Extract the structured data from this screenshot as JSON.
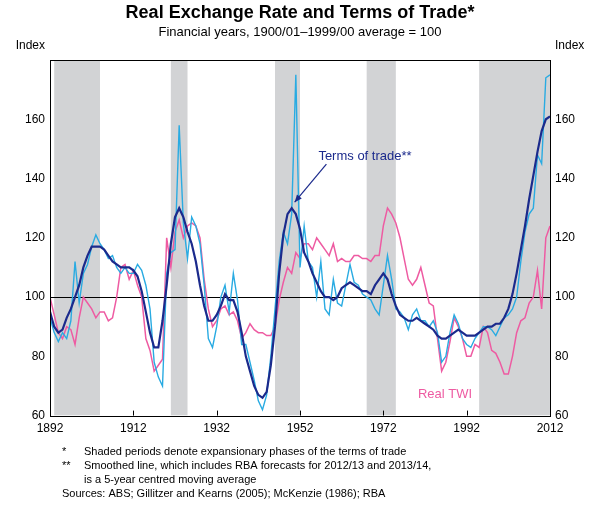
{
  "chart_data": {
    "type": "line",
    "title": "Real Exchange Rate and Terms of Trade*",
    "subtitle": "Financial years, 1900/01–1999/00 average = 100",
    "ylabel": "Index",
    "x": [
      1892,
      1893,
      1894,
      1895,
      1896,
      1897,
      1898,
      1899,
      1900,
      1901,
      1902,
      1903,
      1904,
      1905,
      1906,
      1907,
      1908,
      1909,
      1910,
      1911,
      1912,
      1913,
      1914,
      1915,
      1916,
      1917,
      1918,
      1919,
      1920,
      1921,
      1922,
      1923,
      1924,
      1925,
      1926,
      1927,
      1928,
      1929,
      1930,
      1931,
      1932,
      1933,
      1934,
      1935,
      1936,
      1937,
      1938,
      1939,
      1940,
      1941,
      1942,
      1943,
      1944,
      1945,
      1946,
      1947,
      1948,
      1949,
      1950,
      1951,
      1952,
      1953,
      1954,
      1955,
      1956,
      1957,
      1958,
      1959,
      1960,
      1961,
      1962,
      1963,
      1964,
      1965,
      1966,
      1967,
      1968,
      1969,
      1970,
      1971,
      1972,
      1973,
      1974,
      1975,
      1976,
      1977,
      1978,
      1979,
      1980,
      1981,
      1982,
      1983,
      1984,
      1985,
      1986,
      1987,
      1988,
      1989,
      1990,
      1991,
      1992,
      1993,
      1994,
      1995,
      1996,
      1997,
      1998,
      1999,
      2000,
      2001,
      2002,
      2003,
      2004,
      2005,
      2006,
      2007,
      2008,
      2009,
      2010,
      2011,
      2012
    ],
    "series": [
      {
        "color": "#29ABE2",
        "values": [
          93,
          88,
          85,
          88,
          86,
          92,
          112,
          98,
          108,
          111,
          117,
          121,
          118,
          116,
          113,
          114,
          110,
          108,
          110,
          108,
          108,
          111,
          109,
          104,
          96,
          78,
          73,
          70,
          108,
          115,
          116,
          158,
          125,
          113,
          127,
          124,
          118,
          104,
          86,
          83,
          90,
          100,
          104,
          95,
          108,
          99,
          84,
          84,
          78,
          72,
          65,
          62,
          67,
          80,
          96,
          112,
          122,
          118,
          128,
          175,
          110,
          124,
          112,
          110,
          100,
          112,
          96,
          94,
          106,
          98,
          97,
          104,
          111,
          105,
          104,
          101,
          100,
          99,
          96,
          94,
          104,
          114,
          106,
          96,
          95,
          93,
          89,
          94,
          96,
          92,
          92,
          90,
          92,
          88,
          78,
          80,
          88,
          94,
          91,
          86,
          84,
          83,
          86,
          88,
          90,
          90,
          89,
          87,
          90,
          93,
          94,
          96,
          100,
          112,
          122,
          128,
          130,
          148,
          145,
          174,
          175
        ]
      },
      {
        "name": "Terms of trade**",
        "color": "#1B2A8C",
        "values": [
          95,
          90,
          88,
          89,
          93,
          96,
          100,
          104,
          110,
          114,
          117,
          117,
          117,
          116,
          114,
          112,
          111,
          110,
          110,
          110,
          109,
          107,
          102,
          95,
          88,
          83,
          83,
          92,
          104,
          118,
          127,
          130,
          127,
          122,
          118,
          112,
          104,
          97,
          92,
          92,
          94,
          97,
          101,
          99,
          99,
          95,
          88,
          80,
          75,
          70,
          67,
          66,
          68,
          77,
          90,
          108,
          121,
          128,
          130,
          128,
          123,
          115,
          112,
          108,
          105,
          102,
          100,
          100,
          99,
          100,
          103,
          104,
          105,
          104,
          103,
          102,
          102,
          101,
          104,
          106,
          108,
          106,
          101,
          97,
          94,
          93,
          92,
          92,
          93,
          92,
          91,
          90,
          89,
          87,
          86,
          86,
          87,
          88,
          89,
          88,
          87,
          87,
          87,
          88,
          89,
          90,
          90,
          91,
          91,
          93,
          96,
          101,
          108,
          116,
          124,
          133,
          141,
          149,
          156,
          160,
          161
        ]
      },
      {
        "name": "Real TWI",
        "color": "#EE5BA2",
        "values": [
          100,
          94,
          88,
          86,
          90,
          89,
          84,
          93,
          100,
          98,
          96,
          93,
          95,
          95,
          92,
          93,
          100,
          110,
          111,
          106,
          109,
          104,
          100,
          86,
          82,
          75,
          77,
          79,
          120,
          110,
          122,
          126,
          120,
          124,
          125,
          124,
          120,
          106,
          96,
          90,
          92,
          96,
          97,
          94,
          95,
          92,
          86,
          88,
          91,
          89,
          88,
          88,
          87,
          87,
          90,
          99,
          105,
          110,
          108,
          115,
          113,
          118,
          118,
          116,
          120,
          118,
          116,
          114,
          118,
          112,
          113,
          112,
          112,
          114,
          114,
          113,
          113,
          112,
          114,
          114,
          124,
          130,
          128,
          125,
          120,
          113,
          106,
          104,
          106,
          110,
          104,
          98,
          97,
          86,
          75,
          78,
          85,
          93,
          90,
          86,
          80,
          80,
          84,
          83,
          90,
          88,
          82,
          81,
          78,
          74,
          74,
          80,
          88,
          92,
          93,
          98,
          100,
          109,
          96,
          120,
          124
        ]
      }
    ],
    "shaded": [
      [
        1893,
        1904
      ],
      [
        1921,
        1925
      ],
      [
        1946,
        1952
      ],
      [
        1968,
        1975
      ],
      [
        1995,
        2012
      ]
    ],
    "reference_line": 100,
    "xlim": [
      1892,
      2012
    ],
    "xticks": [
      1892,
      1912,
      1932,
      1952,
      1972,
      1992,
      2012
    ],
    "ylim": [
      60,
      180
    ],
    "yticks": [
      60,
      80,
      100,
      120,
      140,
      160
    ],
    "grid": false,
    "notes": [
      {
        "mark": "*",
        "lines": [
          "Shaded periods denote expansionary phases of the terms of trade"
        ]
      },
      {
        "mark": "**",
        "lines": [
          "Smoothed line, which includes RBA forecasts for 2012/13 and 2013/14,",
          "is a 5-year centred moving average"
        ]
      }
    ],
    "sources": "Sources: ABS; Gillitzer and Kearns (2005); McKenzie (1986); RBA"
  }
}
